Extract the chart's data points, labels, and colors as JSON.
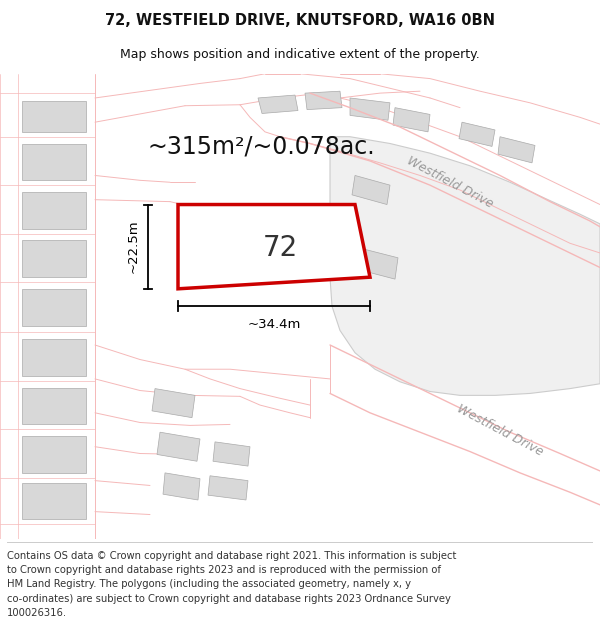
{
  "title_line1": "72, WESTFIELD DRIVE, KNUTSFORD, WA16 0BN",
  "title_line2": "Map shows position and indicative extent of the property.",
  "footer_lines": [
    "Contains OS data © Crown copyright and database right 2021. This information is subject",
    "to Crown copyright and database rights 2023 and is reproduced with the permission of",
    "HM Land Registry. The polygons (including the associated geometry, namely x, y",
    "co-ordinates) are subject to Crown copyright and database rights 2023 Ordnance Survey",
    "100026316."
  ],
  "area_label": "~315m²/~0.078ac.",
  "property_number": "72",
  "dim_width": "~34.4m",
  "dim_height": "~22.5m",
  "road_label1": "Westfield Drive",
  "road_label2": "Westfield Drive",
  "bg_color": "#ffffff",
  "map_bg": "#f5f5f5",
  "plot_outline_color": "#cc0000",
  "building_fill": "#d8d8d8",
  "building_outline": "#aaaaaa",
  "road_line_color": "#f5b8b8",
  "road_label_color": "#999999",
  "dim_color": "#000000",
  "title_fontsize": 10.5,
  "subtitle_fontsize": 9,
  "footer_fontsize": 7.2,
  "area_fontsize": 17,
  "number_fontsize": 20,
  "dim_fontsize": 9.5,
  "road_label_fontsize": 9
}
